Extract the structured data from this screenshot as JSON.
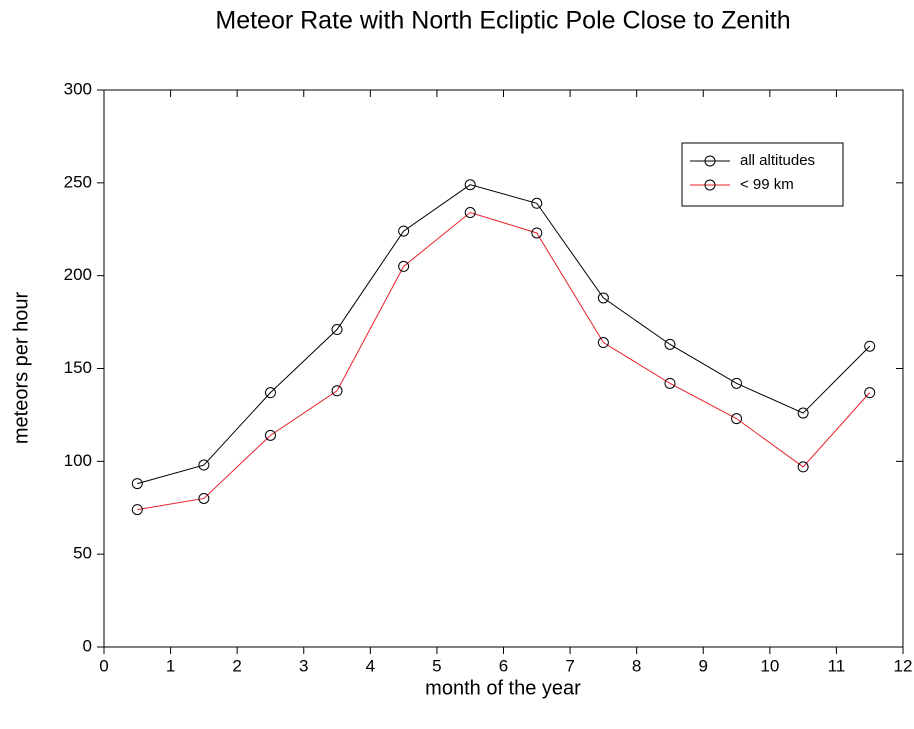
{
  "chart_data": {
    "type": "line",
    "title": "Meteor Rate with North Ecliptic Pole Close to Zenith",
    "x_label": "month of the year",
    "y_label": "meteors per hour",
    "x": [
      0.5,
      1.5,
      2.5,
      3.5,
      4.5,
      5.5,
      6.5,
      7.5,
      8.5,
      9.5,
      10.5,
      11.5
    ],
    "series": [
      {
        "name": "all altitudes",
        "color": "#000000",
        "values": [
          88,
          98,
          137,
          171,
          224,
          249,
          239,
          188,
          163,
          142,
          126,
          162
        ]
      },
      {
        "name": "< 99 km",
        "color": "#e8202a",
        "values": [
          74,
          80,
          114,
          138,
          205,
          234,
          223,
          164,
          142,
          123,
          97,
          137
        ]
      }
    ],
    "xlim": [
      0,
      12
    ],
    "xticks": [
      0,
      1,
      2,
      3,
      4,
      5,
      6,
      7,
      8,
      9,
      10,
      11,
      12
    ],
    "ylim": [
      0,
      300
    ],
    "yticks": [
      0,
      50,
      100,
      150,
      200,
      250,
      300
    ],
    "grid": false,
    "legend": "upper right",
    "marker": "open-circle"
  }
}
